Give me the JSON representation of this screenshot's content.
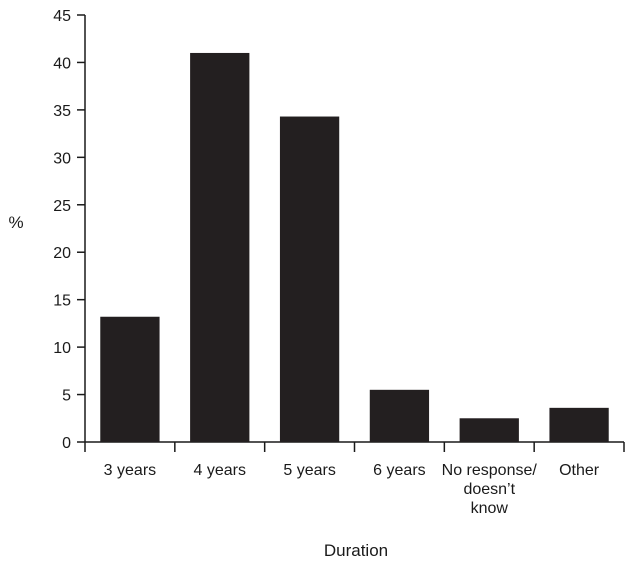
{
  "chart_data": {
    "type": "bar",
    "title": "",
    "xlabel": "Duration",
    "ylabel": "%",
    "ylim": [
      0,
      45
    ],
    "yticks": [
      0,
      5,
      10,
      15,
      20,
      25,
      30,
      35,
      40,
      45
    ],
    "categories": [
      [
        "3 years"
      ],
      [
        "4 years"
      ],
      [
        "5 years"
      ],
      [
        "6 years"
      ],
      [
        "No response/",
        "doesn’t",
        "know"
      ],
      [
        "Other"
      ]
    ],
    "values": [
      13.2,
      41.0,
      34.3,
      5.5,
      2.5,
      3.6
    ],
    "grid": false,
    "legend": "none",
    "bar_color": "#231f20"
  }
}
